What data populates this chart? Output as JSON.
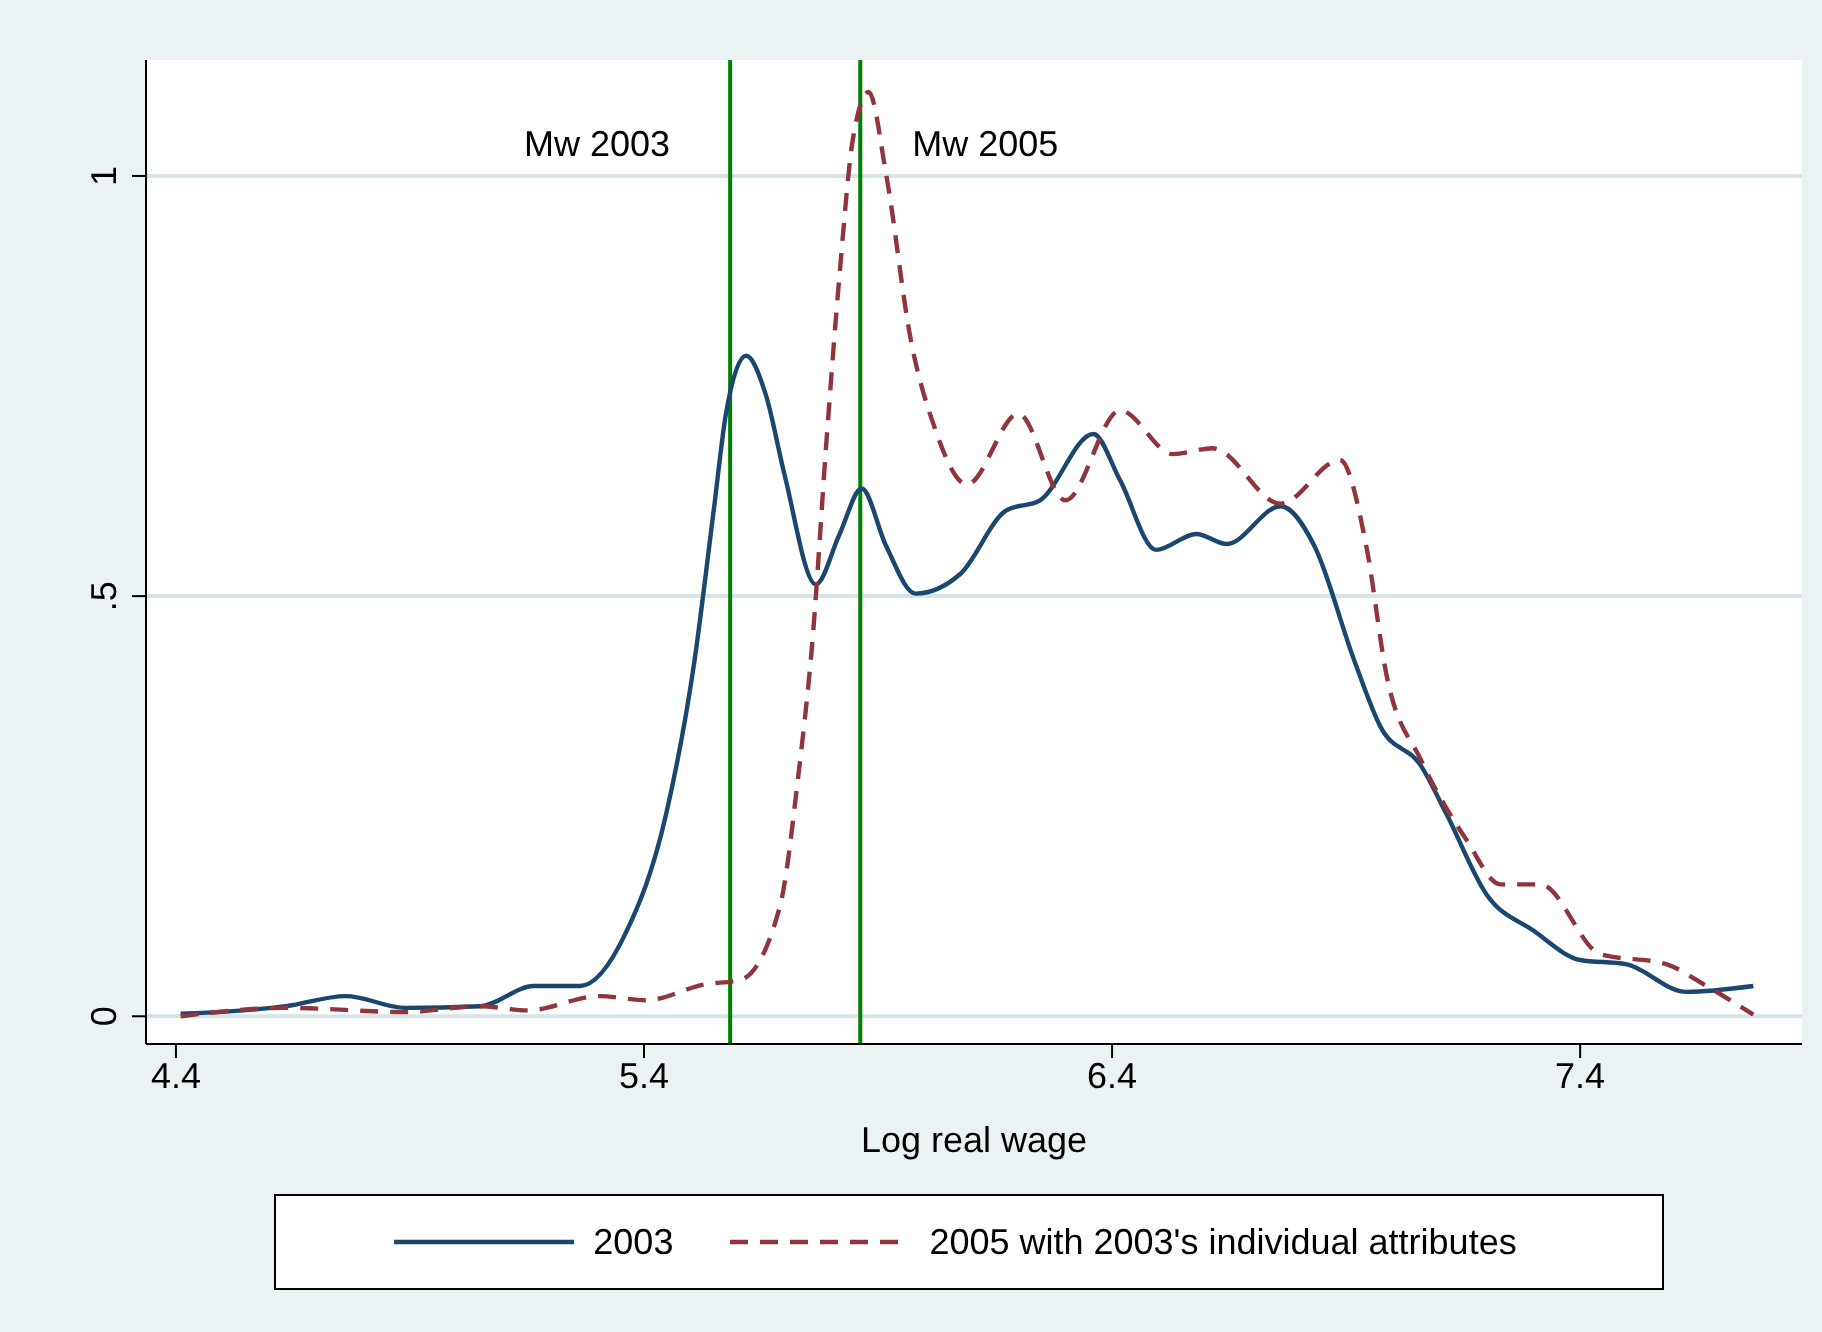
{
  "chart_data": {
    "type": "line",
    "xlabel": "Log real wage",
    "xlim": [
      4.336,
      7.874
    ],
    "xticks": [
      4.4,
      5.4,
      6.4,
      7.4
    ],
    "ylim": [
      -0.033,
      1.138
    ],
    "yticks": [
      0,
      {
        "value": 0.5,
        "label": ".5"
      },
      1
    ],
    "grid": "y",
    "legend": "bottom",
    "marker": "none",
    "ref_lines": [
      {
        "axis": "x",
        "value": 5.584,
        "label": "Mw 2003",
        "color": "#008000",
        "line_style": "solid"
      },
      {
        "axis": "x",
        "value": 5.862,
        "label": "Mw 2005",
        "color": "#008000",
        "line_style": "solid"
      }
    ],
    "series": [
      {
        "name": "2003",
        "color": "#1a476f",
        "line_style": "solid",
        "x": [
          4.41,
          4.635,
          4.763,
          4.89,
          5.05,
          5.165,
          5.263,
          5.36,
          5.447,
          5.507,
          5.55,
          5.575,
          5.618,
          5.66,
          5.7,
          5.767,
          5.818,
          5.865,
          5.917,
          5.98,
          6.075,
          6.174,
          6.246,
          6.36,
          6.417,
          6.494,
          6.58,
          6.645,
          6.76,
          6.832,
          6.917,
          6.973,
          7.06,
          7.115,
          7.2,
          7.3,
          7.4,
          7.498,
          7.627,
          7.77
        ],
        "values": [
          0.003,
          0.012,
          0.024,
          0.01,
          0.012,
          0.036,
          0.036,
          0.098,
          0.24,
          0.42,
          0.607,
          0.717,
          0.786,
          0.74,
          0.645,
          0.514,
          0.574,
          0.628,
          0.56,
          0.503,
          0.526,
          0.602,
          0.614,
          0.693,
          0.638,
          0.555,
          0.574,
          0.562,
          0.607,
          0.56,
          0.424,
          0.345,
          0.298,
          0.24,
          0.145,
          0.102,
          0.067,
          0.062,
          0.029,
          0.036
        ]
      },
      {
        "name": "2005 with 2003's individual attributes",
        "color": "#90353b",
        "line_style": "dashed",
        "x": [
          4.41,
          4.635,
          4.89,
          5.05,
          5.15,
          5.305,
          5.404,
          5.53,
          5.605,
          5.69,
          5.73,
          5.76,
          5.79,
          5.818,
          5.846,
          5.88,
          5.917,
          5.97,
          6.02,
          6.09,
          6.2,
          6.3,
          6.417,
          6.53,
          6.615,
          6.76,
          6.887,
          6.943,
          6.986,
          7.06,
          7.157,
          7.23,
          7.315,
          7.443,
          7.584,
          7.67,
          7.77
        ],
        "values": [
          0,
          0.01,
          0.005,
          0.012,
          0.007,
          0.024,
          0.019,
          0.038,
          0.043,
          0.13,
          0.288,
          0.448,
          0.686,
          0.884,
          1.043,
          1.1,
          1.003,
          0.805,
          0.702,
          0.633,
          0.717,
          0.614,
          0.721,
          0.669,
          0.676,
          0.61,
          0.662,
          0.56,
          0.407,
          0.305,
          0.21,
          0.157,
          0.157,
          0.074,
          0.062,
          0.036,
          0.002
        ]
      }
    ]
  }
}
